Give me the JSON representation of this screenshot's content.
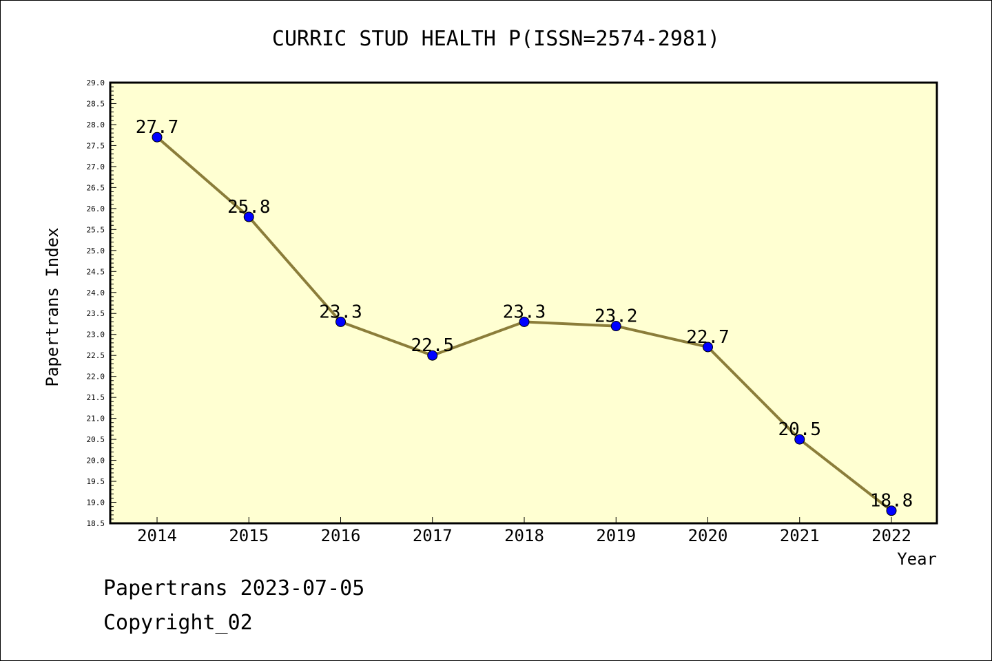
{
  "chart_data": {
    "type": "line",
    "title": "CURRIC STUD HEALTH P(ISSN=2574-2981)",
    "xlabel": "Year",
    "ylabel": "Papertrans Index",
    "ylim": [
      18.5,
      29.0
    ],
    "y_ticks": [
      "18.5",
      "19.0",
      "19.5",
      "20.0",
      "20.5",
      "21.0",
      "21.5",
      "22.0",
      "22.5",
      "23.0",
      "23.5",
      "24.0",
      "24.5",
      "25.0",
      "25.5",
      "26.0",
      "26.5",
      "27.0",
      "27.5",
      "28.0",
      "28.5",
      "29.0"
    ],
    "categories": [
      "2014",
      "2015",
      "2016",
      "2017",
      "2018",
      "2019",
      "2020",
      "2021",
      "2022"
    ],
    "values": [
      27.7,
      25.8,
      23.3,
      22.5,
      23.3,
      23.2,
      22.7,
      20.5,
      18.8
    ],
    "value_labels": [
      "27.7",
      "25.8",
      "23.3",
      "22.5",
      "23.3",
      "23.2",
      "22.7",
      "20.5",
      "18.8"
    ],
    "grid": false,
    "colors": {
      "plot_background": "#ffffd2",
      "line": "#8b7d3a",
      "marker": "#0000ff"
    }
  },
  "footer": {
    "line1": "Papertrans 2023-07-05",
    "line2": "Copyright_02"
  }
}
